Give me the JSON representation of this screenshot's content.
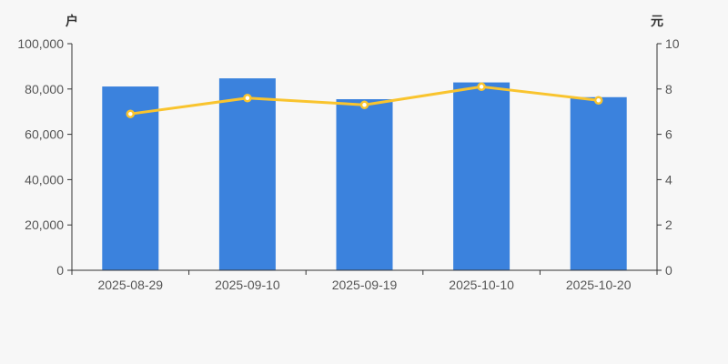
{
  "chart": {
    "background": "#f7f7f7",
    "left_axis": {
      "unit": "户",
      "min": 0,
      "max": 100000,
      "interval": 20000,
      "tick_labels": [
        "0",
        "20,000",
        "40,000",
        "60,000",
        "80,000",
        "100,000"
      ]
    },
    "right_axis": {
      "unit": "元",
      "min": 0,
      "max": 10,
      "interval": 2,
      "tick_labels": [
        "0",
        "2",
        "4",
        "6",
        "8",
        "10"
      ]
    },
    "colors": {
      "bar": "#3b82dd",
      "line": "#f9c42e",
      "marker_fill": "#ffffff",
      "marker_stroke": "#f9c42e",
      "axis_line": "#333333",
      "tick_label": "#555555"
    }
  },
  "chart_data": {
    "type": "combo",
    "categories": [
      "2025-08-29",
      "2025-09-10",
      "2025-09-19",
      "2025-10-10",
      "2025-10-20"
    ],
    "series": [
      {
        "name": "户",
        "type": "bar",
        "axis": "left",
        "values": [
          81100,
          84700,
          75500,
          82900,
          76400
        ]
      },
      {
        "name": "元",
        "type": "line",
        "axis": "right",
        "values": [
          6.9,
          7.6,
          7.3,
          8.1,
          7.5
        ]
      }
    ],
    "title": "",
    "xlabel": "",
    "ylabel_left": "户",
    "ylabel_right": "元",
    "ylim_left": [
      0,
      100000
    ],
    "ylim_right": [
      0,
      10
    ],
    "grid": false,
    "legend": "none"
  }
}
